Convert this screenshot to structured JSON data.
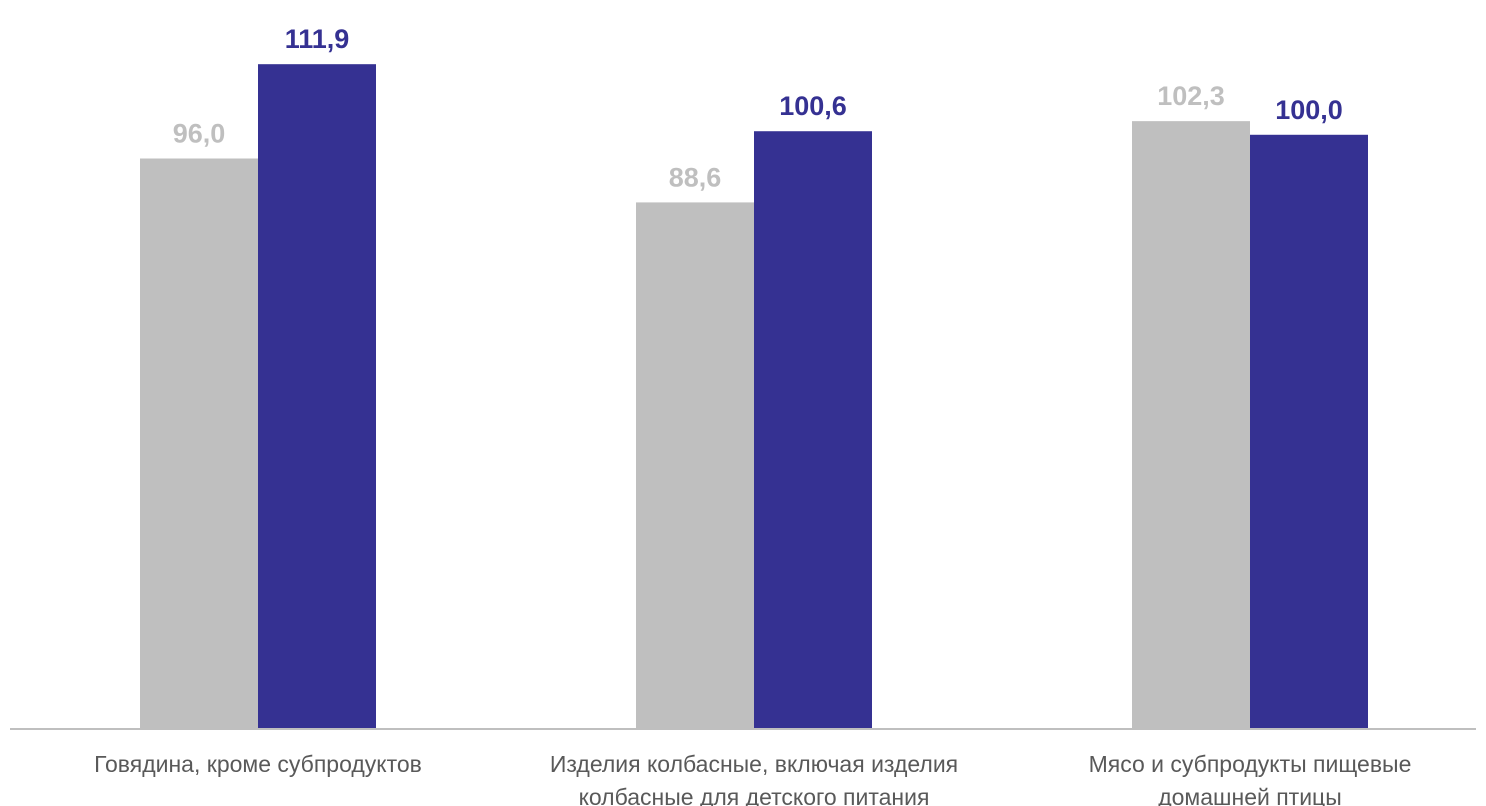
{
  "chart_data": {
    "type": "bar",
    "categories": [
      [
        "Говядина, кроме субпродуктов"
      ],
      [
        "Изделия колбасные, включая изделия",
        "колбасные для детского питания"
      ],
      [
        "Мясо и субпродукты пищевые",
        "домашней птицы"
      ]
    ],
    "series": [
      {
        "color": "#bfbfbf",
        "values": [
          96.0,
          88.6,
          102.3
        ],
        "labels": [
          "96,0",
          "88,6",
          "102,3"
        ]
      },
      {
        "color": "#353192",
        "values": [
          111.9,
          100.6,
          100.0
        ],
        "labels": [
          "111,9",
          "100,6",
          "100,0"
        ]
      }
    ],
    "ylim": [
      0,
      118
    ],
    "grid": false,
    "legend": "none",
    "axis_color": "#bfbfbf"
  }
}
